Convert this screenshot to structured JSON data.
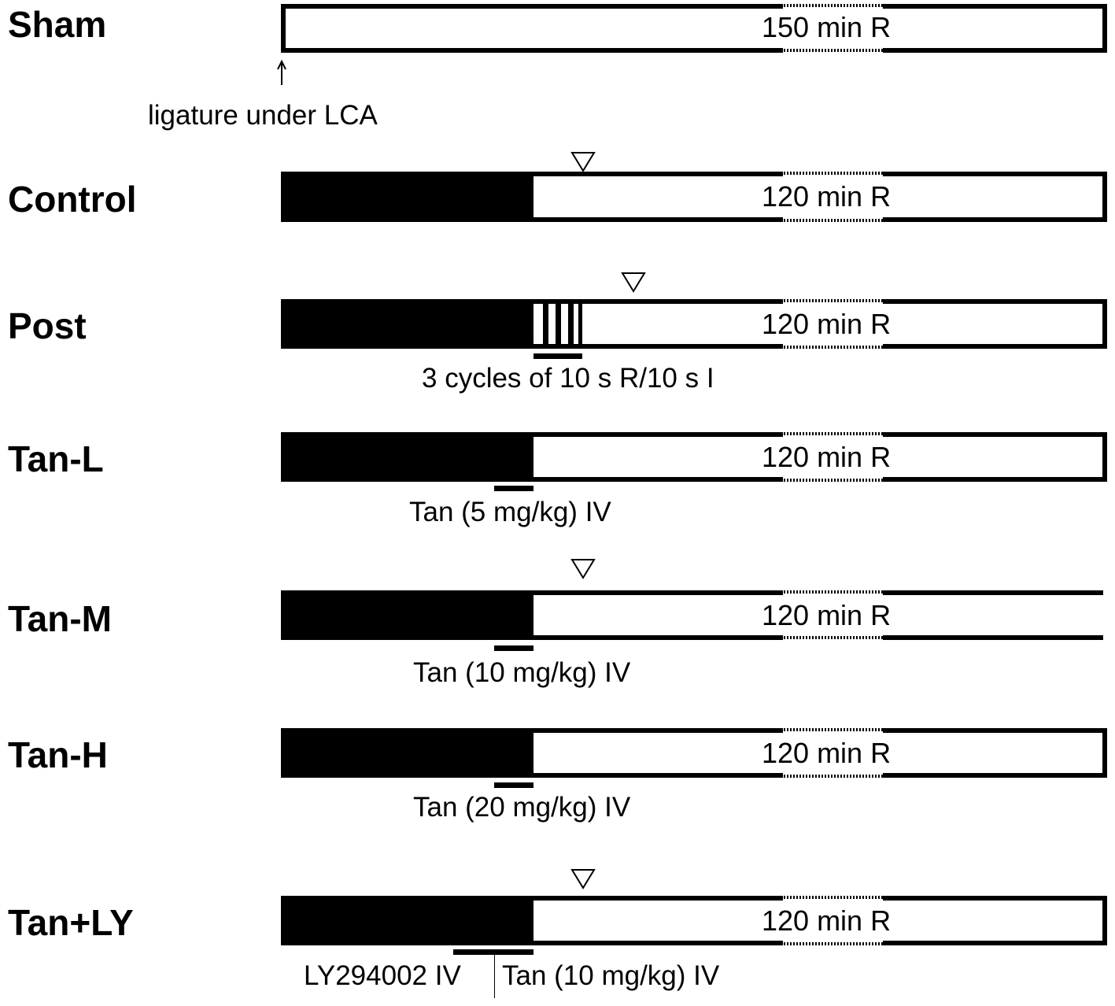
{
  "groups": [
    {
      "name": "Sham",
      "reperfusion": "150 min R"
    },
    {
      "name": "Control",
      "reperfusion": "120 min R"
    },
    {
      "name": "Post",
      "reperfusion": "120 min R"
    },
    {
      "name": "Tan-L",
      "reperfusion": "120 min R"
    },
    {
      "name": "Tan-M",
      "reperfusion": "120 min R"
    },
    {
      "name": "Tan-H",
      "reperfusion": "120 min R"
    },
    {
      "name": "Tan+LY",
      "reperfusion": "120 min R"
    }
  ],
  "annotations": {
    "ligature": "ligature under LCA",
    "post": "3 cycles of 10 s R/10 s I",
    "tan_l": "Tan (5 mg/kg) IV",
    "tan_m": "Tan (10 mg/kg) IV",
    "tan_h": "Tan (20 mg/kg) IV",
    "ly": "LY294002 IV",
    "tan_ly": "Tan (10 mg/kg) IV"
  },
  "colors": {
    "ischemia": "#000000",
    "reperfusion": "#ffffff"
  }
}
